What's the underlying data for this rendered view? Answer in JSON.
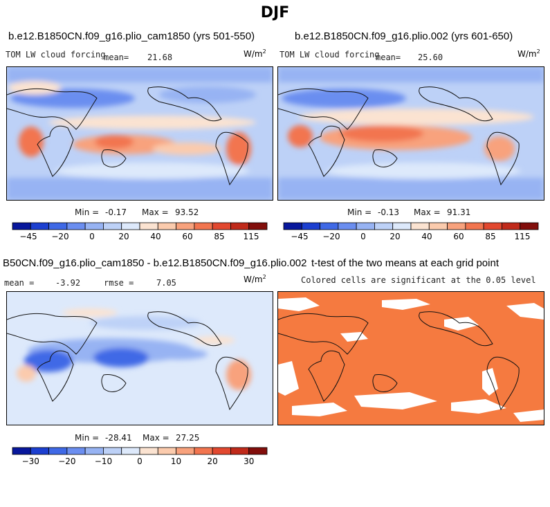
{
  "figure": {
    "title": "DJF"
  },
  "chart_data": [
    {
      "type": "heatmap",
      "id": "panel_a",
      "title": "b.e12.B1850CN.f09_g16.plio_cam1850 (yrs 501-550)",
      "variable": "TOM LW cloud forcing",
      "mean_label": "mean=",
      "mean": "21.68",
      "units_base": "W/m",
      "units_exp": "2",
      "min_label": "Min =",
      "min": "-0.17",
      "max_label": "Max =",
      "max": "93.52",
      "colorbar_ticks": [
        "-45",
        "-20",
        "0",
        "20",
        "40",
        "60",
        "85",
        "115"
      ],
      "colors": [
        "#08179c",
        "#1c3fd0",
        "#3f69e6",
        "#6b8ef0",
        "#97b3f3",
        "#bdd1f7",
        "#dde9fb",
        "#fbe3d1",
        "#fbcbad",
        "#f8a27d",
        "#f2754f",
        "#e2482f",
        "#c02a1a",
        "#820e0b"
      ]
    },
    {
      "type": "heatmap",
      "id": "panel_b",
      "title": "b.e12.B1850CN.f09_g16.plio.002 (yrs 601-650)",
      "variable": "TOM LW cloud forcing",
      "mean_label": "mean=",
      "mean": "25.60",
      "units_base": "W/m",
      "units_exp": "2",
      "min_label": "Min =",
      "min": "-0.13",
      "max_label": "Max =",
      "max": "91.31",
      "colorbar_ticks": [
        "-45",
        "-20",
        "0",
        "20",
        "40",
        "60",
        "85",
        "115"
      ],
      "colors": [
        "#08179c",
        "#1c3fd0",
        "#3f69e6",
        "#6b8ef0",
        "#97b3f3",
        "#bdd1f7",
        "#dde9fb",
        "#fbe3d1",
        "#fbcbad",
        "#f8a27d",
        "#f2754f",
        "#e2482f",
        "#c02a1a",
        "#820e0b"
      ]
    },
    {
      "type": "heatmap",
      "id": "panel_c",
      "title": "B50CN.f09_g16.plio_cam1850 - b.e12.B1850CN.f09_g16.plio.002",
      "mean_label": "mean =",
      "mean": "-3.92",
      "rmse_label": "rmse =",
      "rmse": "7.05",
      "units_base": "W/m",
      "units_exp": "2",
      "min_label": "Min =",
      "min": "-28.41",
      "max_label": "Max =",
      "max": "27.25",
      "colorbar_ticks": [
        "-30",
        "-20",
        "-10",
        "0",
        "10",
        "20",
        "30"
      ],
      "colors": [
        "#08179c",
        "#1c3fd0",
        "#3f69e6",
        "#6b8ef0",
        "#97b3f3",
        "#bdd1f7",
        "#dde9fb",
        "#fbe3d1",
        "#fbcbad",
        "#f8a27d",
        "#f2754f",
        "#e2482f",
        "#c02a1a",
        "#820e0b"
      ]
    },
    {
      "type": "heatmap",
      "id": "panel_d",
      "title": "t-test of the two means at each grid point",
      "subtitle": "Colored cells are significant at the 0.05 level",
      "significant_color": "#f57a40",
      "insignificant_color": "#ffffff"
    }
  ]
}
